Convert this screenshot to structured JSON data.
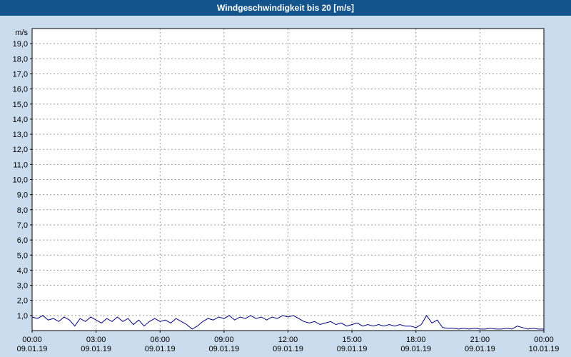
{
  "title": "Windgeschwindigkeit bis 20 [m/s]",
  "colors": {
    "title_bar_bg": "#14548c",
    "title_text": "#ffffff",
    "page_bg": "#cbdcee",
    "plot_bg": "#ffffff",
    "plot_border": "#000000",
    "grid": "#9a9a9a",
    "line": "#000080",
    "tick_text": "#000000"
  },
  "chart_data": {
    "type": "line",
    "title": "Windgeschwindigkeit bis 20 [m/s]",
    "ylabel_unit": "m/s",
    "ylim": [
      0,
      20
    ],
    "xlim": [
      0,
      24
    ],
    "grid": true,
    "legend": "none",
    "ytick_values": [
      1,
      2,
      3,
      4,
      5,
      6,
      7,
      8,
      9,
      10,
      11,
      12,
      13,
      14,
      15,
      16,
      17,
      18,
      19
    ],
    "ytick_labels": [
      "1,0",
      "2,0",
      "3,0",
      "4,0",
      "5,0",
      "6,0",
      "7,0",
      "8,0",
      "9,0",
      "10,0",
      "11,0",
      "12,0",
      "13,0",
      "14,0",
      "15,0",
      "16,0",
      "17,0",
      "18,0",
      "19,0"
    ],
    "x_ticks": [
      {
        "h": 0,
        "time": "00:00",
        "date": "09.01.19"
      },
      {
        "h": 3,
        "time": "03:00",
        "date": "09.01.19"
      },
      {
        "h": 6,
        "time": "06:00",
        "date": "09.01.19"
      },
      {
        "h": 9,
        "time": "09:00",
        "date": "09.01.19"
      },
      {
        "h": 12,
        "time": "12:00",
        "date": "09.01.19"
      },
      {
        "h": 15,
        "time": "15:00",
        "date": "09.01.19"
      },
      {
        "h": 18,
        "time": "18:00",
        "date": "09.01.19"
      },
      {
        "h": 21,
        "time": "21:00",
        "date": "09.01.19"
      },
      {
        "h": 24,
        "time": "00:00",
        "date": "10.01.19"
      }
    ],
    "series": [
      {
        "name": "Windgeschwindigkeit",
        "color": "#000080",
        "x_start": 0,
        "x_step": 0.25,
        "values": [
          0.9,
          0.8,
          1.0,
          0.7,
          0.8,
          0.6,
          0.9,
          0.7,
          0.3,
          0.8,
          0.6,
          0.9,
          0.7,
          0.5,
          0.8,
          0.6,
          0.9,
          0.6,
          0.8,
          0.4,
          0.7,
          0.3,
          0.6,
          0.8,
          0.6,
          0.7,
          0.5,
          0.8,
          0.6,
          0.4,
          0.1,
          0.3,
          0.6,
          0.8,
          0.7,
          0.9,
          0.8,
          1.0,
          0.7,
          0.9,
          0.8,
          1.0,
          0.8,
          0.9,
          0.7,
          0.9,
          0.8,
          1.0,
          0.9,
          1.0,
          0.8,
          0.6,
          0.5,
          0.6,
          0.4,
          0.5,
          0.6,
          0.4,
          0.5,
          0.3,
          0.4,
          0.5,
          0.3,
          0.4,
          0.3,
          0.4,
          0.3,
          0.4,
          0.3,
          0.4,
          0.3,
          0.3,
          0.2,
          0.4,
          1.0,
          0.5,
          0.7,
          0.2,
          0.15,
          0.15,
          0.1,
          0.15,
          0.1,
          0.15,
          0.1,
          0.1,
          0.15,
          0.1,
          0.1,
          0.15,
          0.1,
          0.3,
          0.2,
          0.1,
          0.15,
          0.1,
          0.1
        ]
      }
    ]
  }
}
